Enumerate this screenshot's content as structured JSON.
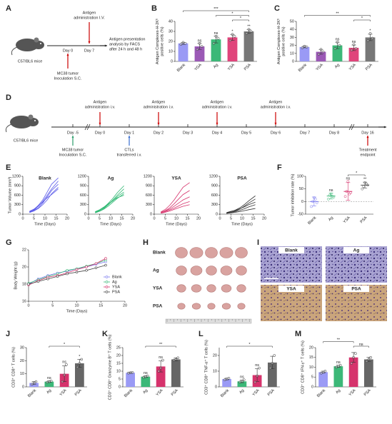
{
  "panel_letters": [
    "A",
    "B",
    "C",
    "D",
    "E",
    "F",
    "G",
    "H",
    "I",
    "J",
    "K",
    "L",
    "M"
  ],
  "schematic_a": {
    "antigen": [
      "Antigen",
      "administration I.V."
    ],
    "day0": "Day 0",
    "day7": "Day 7",
    "analysis": [
      "Antigen presentation",
      "analysis by FACS",
      "after 24 h and 48 h"
    ],
    "mouse": "C57/BL6 mice",
    "tumor": [
      "MC38 tumor",
      "Inoculation S.C."
    ]
  },
  "schematic_d": {
    "mouse": "C57/BL6 mice",
    "days": [
      "Day -5",
      "Day 0",
      "Day 1",
      "Day 2",
      "Day 3",
      "Day 4",
      "Day 5",
      "Day 6",
      "Day 7",
      "Day 8",
      "Day 16"
    ],
    "antigen": [
      [
        "Antigen",
        "administration i.v."
      ],
      [
        "Antigen",
        "administration i.v."
      ],
      [
        "Antigen",
        "administration i.v."
      ],
      [
        "Antigen",
        "administration i.v."
      ]
    ],
    "tumor": [
      "MC38 tumor",
      "Inoculation S.C."
    ],
    "ctl": [
      "CTLs",
      "transferred i.v."
    ],
    "endpoint": [
      "Treatment",
      "endpoint"
    ]
  },
  "tumor_photos": {
    "rows": [
      "Blank",
      "Ag",
      "YSA",
      "PSA"
    ]
  },
  "histology": {
    "tiles": [
      "Blank",
      "Ag",
      "YSA",
      "PSA"
    ]
  },
  "chart_data": [
    {
      "type": "bar",
      "ylabel": [
        "Antigen Complexes-H-2Kᵇ",
        "positive cells (%)"
      ],
      "categories": [
        "Blank",
        "YGA",
        "Ag",
        "YSA",
        "PSA"
      ],
      "values": [
        18,
        15,
        22,
        24,
        30
      ],
      "errors": [
        1,
        3,
        3.5,
        3,
        2
      ],
      "points": [
        [
          17,
          19,
          18
        ],
        [
          12,
          18,
          15
        ],
        [
          18,
          25,
          23
        ],
        [
          21,
          27,
          25
        ],
        [
          28,
          32,
          30
        ]
      ],
      "colors": [
        "#9a9af5",
        "#9b59b6",
        "#3cb878",
        "#e0457b",
        "#777777"
      ],
      "ylim": [
        0,
        40
      ],
      "yticks": [
        0,
        10,
        20,
        30,
        40
      ],
      "sig": [
        null,
        "ns",
        "ns",
        "*",
        "**"
      ],
      "brackets": [
        {
          "between": [
            "Blank",
            "PSA"
          ],
          "label": "***"
        },
        {
          "between": [
            "Ag",
            "PSA"
          ],
          "label": "*"
        },
        {
          "between": [
            "YSA",
            "PSA"
          ],
          "label": "*"
        }
      ]
    },
    {
      "type": "bar",
      "ylabel": [
        "Antigen Complexes-H-2Kᵇ",
        "positive cells (%)"
      ],
      "categories": [
        "Blank",
        "YGA",
        "Ag",
        "YSA",
        "PSA"
      ],
      "values": [
        18,
        12,
        20,
        17,
        30
      ],
      "errors": [
        1,
        3,
        4,
        3.5,
        4
      ],
      "points": [
        [
          17,
          19,
          18
        ],
        [
          9,
          15,
          12
        ],
        [
          16,
          24,
          20
        ],
        [
          14,
          21,
          16
        ],
        [
          26,
          35,
          29
        ]
      ],
      "colors": [
        "#9a9af5",
        "#9b59b6",
        "#3cb878",
        "#e0457b",
        "#777777"
      ],
      "ylim": [
        0,
        50
      ],
      "yticks": [
        0,
        10,
        20,
        30,
        40,
        50
      ],
      "sig": [
        null,
        null,
        "ns",
        "ns",
        "*"
      ],
      "brackets": [
        {
          "between": [
            "Blank",
            "PSA"
          ],
          "label": "**"
        },
        {
          "between": [
            "YSA",
            "PSA"
          ],
          "label": "*"
        }
      ]
    },
    {
      "type": "line",
      "title": "Blank",
      "ylabel": "Tumor Volume (mm³)",
      "xlabel": "Time (Days)",
      "color": "#5b5bea",
      "x": [
        3,
        5,
        7,
        9,
        11,
        13,
        16
      ],
      "series": [
        {
          "values": [
            80,
            150,
            280,
            450,
            700,
            950,
            1150
          ]
        },
        {
          "values": [
            60,
            130,
            250,
            400,
            600,
            800,
            1050
          ]
        },
        {
          "values": [
            70,
            120,
            200,
            350,
            550,
            750,
            950
          ]
        },
        {
          "values": [
            50,
            100,
            180,
            300,
            450,
            650,
            850
          ]
        },
        {
          "values": [
            90,
            160,
            260,
            380,
            520,
            620,
            800
          ]
        }
      ],
      "xlim": [
        0,
        20
      ],
      "xticks": [
        0,
        5,
        10,
        15,
        20
      ],
      "ylim": [
        0,
        1200
      ],
      "yticks": [
        0,
        300,
        600,
        900,
        1200
      ]
    },
    {
      "type": "line",
      "title": "Ag",
      "xlabel": "Time (Days)",
      "color": "#2eb872",
      "x": [
        3,
        5,
        7,
        9,
        11,
        13,
        16
      ],
      "series": [
        {
          "values": [
            60,
            120,
            220,
            350,
            500,
            680,
            900
          ]
        },
        {
          "values": [
            50,
            100,
            180,
            300,
            450,
            600,
            800
          ]
        },
        {
          "values": [
            70,
            130,
            200,
            320,
            420,
            560,
            700
          ]
        },
        {
          "values": [
            40,
            90,
            160,
            260,
            380,
            500,
            650
          ]
        },
        {
          "values": [
            80,
            140,
            230,
            330,
            430,
            520,
            600
          ]
        }
      ],
      "xlim": [
        0,
        20
      ],
      "xticks": [
        0,
        5,
        10,
        15,
        20
      ],
      "ylim": [
        0,
        1200
      ],
      "yticks": [
        0,
        300,
        600,
        900,
        1200
      ]
    },
    {
      "type": "line",
      "title": "YSA",
      "xlabel": "Time (Days)",
      "color": "#d6336c",
      "x": [
        3,
        5,
        7,
        9,
        11,
        13,
        16
      ],
      "series": [
        {
          "values": [
            70,
            150,
            280,
            450,
            650,
            850,
            1000
          ]
        },
        {
          "values": [
            50,
            110,
            200,
            330,
            480,
            620,
            750
          ]
        },
        {
          "values": [
            60,
            100,
            160,
            250,
            350,
            450,
            550
          ]
        },
        {
          "values": [
            40,
            80,
            130,
            190,
            260,
            330,
            400
          ]
        },
        {
          "values": [
            30,
            60,
            100,
            150,
            200,
            250,
            300
          ]
        }
      ],
      "xlim": [
        0,
        20
      ],
      "xticks": [
        0,
        5,
        10,
        15,
        20
      ],
      "ylim": [
        0,
        1200
      ],
      "yticks": [
        0,
        300,
        600,
        900,
        1200
      ]
    },
    {
      "type": "line",
      "title": "PSA",
      "xlabel": "Time (Days)",
      "color": "#333333",
      "x": [
        3,
        5,
        7,
        9,
        11,
        13,
        16
      ],
      "series": [
        {
          "values": [
            40,
            80,
            130,
            200,
            300,
            420,
            580
          ]
        },
        {
          "values": [
            30,
            60,
            100,
            160,
            250,
            350,
            480
          ]
        },
        {
          "values": [
            50,
            90,
            120,
            170,
            230,
            300,
            380
          ]
        },
        {
          "values": [
            20,
            50,
            80,
            120,
            170,
            230,
            300
          ]
        },
        {
          "values": [
            30,
            40,
            60,
            80,
            110,
            140,
            180
          ]
        }
      ],
      "xlim": [
        0,
        20
      ],
      "xticks": [
        0,
        5,
        10,
        15,
        20
      ],
      "ylim": [
        0,
        1200
      ],
      "yticks": [
        0,
        300,
        600,
        900,
        1200
      ]
    },
    {
      "type": "dot",
      "ylabel": "Tumor inhibition rate (%)",
      "categories": [
        "Blank",
        "Ag",
        "YSA",
        "PSA"
      ],
      "values": [
        0,
        22,
        40,
        65
      ],
      "errors": [
        18,
        12,
        35,
        12
      ],
      "points": [
        [
          -20,
          0,
          15,
          10,
          -5
        ],
        [
          10,
          25,
          30,
          20,
          18
        ],
        [
          20,
          40,
          80,
          30,
          35
        ],
        [
          50,
          60,
          75,
          70,
          65
        ]
      ],
      "colors": [
        "#7b7bef",
        "#3cb878",
        "#d6336c",
        "#555555"
      ],
      "ylim": [
        -50,
        100
      ],
      "yticks": [
        -50,
        0,
        50,
        100
      ],
      "sig": [
        null,
        "ns",
        "ns",
        "**"
      ],
      "brackets": [
        {
          "between": [
            "YSA",
            "PSA"
          ],
          "label": "*"
        }
      ]
    },
    {
      "type": "line",
      "ylabel": "Body Weight (g)",
      "xlabel": "Time (Days)",
      "legend": "lower right",
      "markers": true,
      "x": [
        0,
        2,
        4,
        6,
        8,
        10,
        12,
        14,
        16
      ],
      "series": [
        {
          "name": "Blank",
          "color": "#7b7bef",
          "values": [
            18.0,
            18.6,
            19.0,
            19.3,
            19.5,
            19.8,
            20.0,
            20.3,
            20.6
          ]
        },
        {
          "name": "Ag",
          "color": "#3cb878",
          "values": [
            18.1,
            18.5,
            18.9,
            19.2,
            19.6,
            19.8,
            20.1,
            20.4,
            20.8
          ]
        },
        {
          "name": "YSA",
          "color": "#d6336c",
          "values": [
            17.9,
            18.4,
            18.8,
            19.0,
            19.3,
            19.7,
            20.0,
            20.4,
            21.0
          ]
        },
        {
          "name": "PSA",
          "color": "#444444",
          "values": [
            18.0,
            18.3,
            18.6,
            18.9,
            19.2,
            19.4,
            19.6,
            19.9,
            20.2
          ]
        }
      ],
      "xlim": [
        0,
        20
      ],
      "xticks": [
        0,
        5,
        10,
        15,
        20
      ],
      "ylim": [
        16,
        22
      ],
      "yticks": [
        16,
        18,
        20,
        22
      ]
    },
    {
      "type": "bar",
      "ylabel": "CD3⁺ CD8⁺ T cells (%)",
      "categories": [
        "Blank",
        "Ag",
        "YSA",
        "PSA"
      ],
      "values": [
        3,
        4,
        10,
        18
      ],
      "errors": [
        1,
        0.5,
        6,
        3
      ],
      "points": [
        [
          2,
          3,
          4
        ],
        [
          3.5,
          4,
          4.5
        ],
        [
          4,
          9,
          17
        ],
        [
          15,
          18,
          21
        ]
      ],
      "colors": [
        "#9a9af5",
        "#3cb878",
        "#d6336c",
        "#666666"
      ],
      "ylim": [
        0,
        30
      ],
      "yticks": [
        0,
        10,
        20,
        30
      ],
      "sig": [
        null,
        "ns",
        "ns",
        "*"
      ],
      "brackets": [
        {
          "between": [
            "Ag",
            "PSA"
          ],
          "label": "*"
        }
      ]
    },
    {
      "type": "bar",
      "ylabel": "CD3⁺ CD8⁺ Granzyme B⁺ T cells (%)",
      "categories": [
        "Blank",
        "Ag",
        "YSA",
        "PSA"
      ],
      "values": [
        9,
        6.5,
        13,
        17.5
      ],
      "errors": [
        0.3,
        0.5,
        3.5,
        1
      ],
      "points": [
        [
          8.8,
          9,
          9.2
        ],
        [
          6,
          6.5,
          7
        ],
        [
          10,
          12,
          17
        ],
        [
          17,
          17.5,
          18.5
        ]
      ],
      "colors": [
        "#9a9af5",
        "#3cb878",
        "#d6336c",
        "#666666"
      ],
      "ylim": [
        0,
        25
      ],
      "yticks": [
        0,
        5,
        10,
        15,
        20,
        25
      ],
      "sig": [
        null,
        "ns",
        "ns",
        null
      ],
      "brackets": [
        {
          "between": [
            "Ag",
            "PSA"
          ],
          "label": "**"
        }
      ]
    },
    {
      "type": "bar",
      "ylabel": "CD3⁺ CD8⁺ TNF-α⁺ T cells (%)",
      "categories": [
        "Blank",
        "Ag",
        "YSA",
        "PSA"
      ],
      "values": [
        5,
        3.5,
        7.5,
        15.5
      ],
      "errors": [
        0.5,
        0.8,
        4,
        4
      ],
      "points": [
        [
          4.5,
          5,
          5.5
        ],
        [
          3,
          3.5,
          4.5
        ],
        [
          3,
          7,
          12
        ],
        [
          12,
          15,
          20
        ]
      ],
      "colors": [
        "#9a9af5",
        "#3cb878",
        "#d6336c",
        "#666666"
      ],
      "ylim": [
        0,
        25
      ],
      "yticks": [
        0,
        10,
        20
      ],
      "sig": [
        null,
        "ns",
        "ns",
        null
      ],
      "brackets": [
        {
          "between": [
            "Blank",
            "PSA"
          ],
          "label": "*"
        }
      ]
    },
    {
      "type": "bar",
      "ylabel": "CD3⁺ CD8⁺ IFN-γ⁺ T cells (%)",
      "categories": [
        "Blank",
        "Ag",
        "YSA",
        "PSA"
      ],
      "values": [
        7.5,
        10.5,
        15,
        14
      ],
      "errors": [
        0.5,
        0.5,
        2.5,
        1
      ],
      "points": [
        [
          7,
          7.5,
          8
        ],
        [
          10,
          10.5,
          11
        ],
        [
          12,
          15,
          17
        ],
        [
          13,
          14,
          15
        ]
      ],
      "colors": [
        "#9a9af5",
        "#3cb878",
        "#d6336c",
        "#666666"
      ],
      "ylim": [
        0,
        20
      ],
      "yticks": [
        0,
        5,
        10,
        15,
        20
      ],
      "sig": [
        null,
        "ns",
        null,
        null
      ],
      "brackets": [
        {
          "between": [
            "Blank",
            "YSA"
          ],
          "label": "**"
        },
        {
          "between": [
            "YSA",
            "PSA"
          ],
          "label": "ns"
        }
      ]
    }
  ]
}
